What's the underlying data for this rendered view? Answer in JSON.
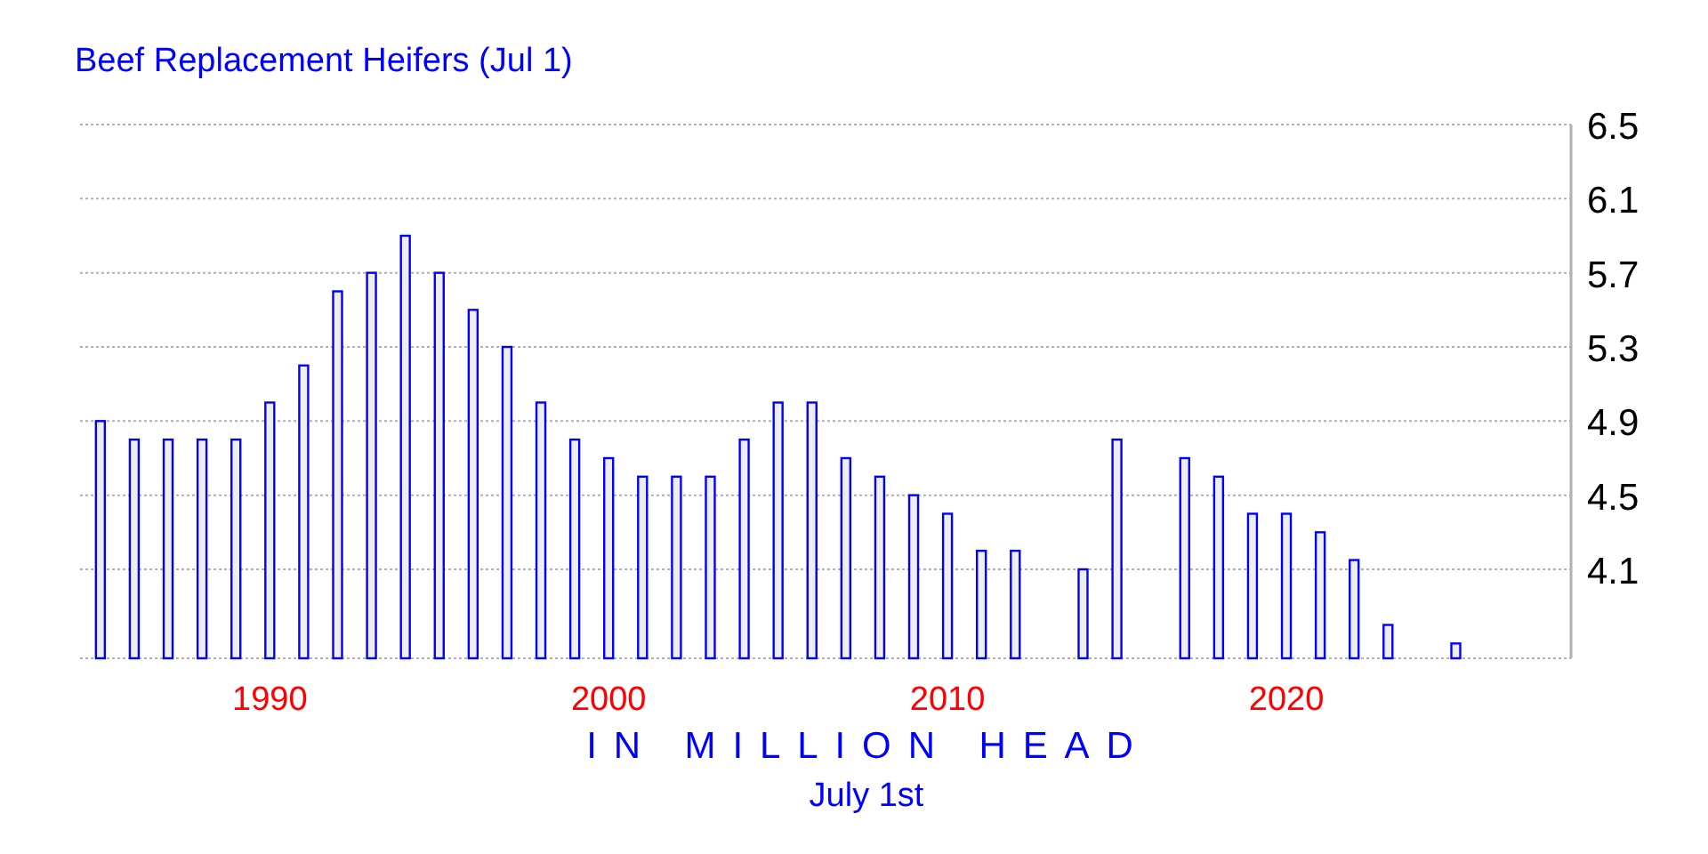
{
  "chart_data": {
    "type": "bar",
    "title": "Beef Replacement Heifers (Jul 1)",
    "xlabel": "IN MILLION HEAD",
    "annotations": [
      "July 1st"
    ],
    "x": [
      1985,
      1986,
      1987,
      1988,
      1989,
      1990,
      1991,
      1992,
      1993,
      1994,
      1995,
      1996,
      1997,
      1998,
      1999,
      2000,
      2001,
      2002,
      2003,
      2004,
      2005,
      2006,
      2007,
      2008,
      2009,
      2010,
      2011,
      2012,
      2014,
      2015,
      2017,
      2018,
      2019,
      2020,
      2021,
      2022,
      2023,
      2025
    ],
    "values": [
      4.9,
      4.8,
      4.8,
      4.8,
      4.8,
      5.0,
      5.2,
      5.6,
      5.7,
      5.9,
      5.7,
      5.5,
      5.3,
      5.0,
      4.8,
      4.7,
      4.6,
      4.6,
      4.6,
      4.8,
      5.0,
      5.0,
      4.7,
      4.6,
      4.5,
      4.4,
      4.2,
      4.2,
      4.1,
      4.8,
      4.7,
      4.6,
      4.4,
      4.4,
      4.3,
      4.15,
      3.8,
      3.7
    ],
    "color": "#0000ff",
    "xlim": [
      1984.4,
      2028.4
    ],
    "xticks": [
      1990,
      2000,
      2010,
      2020
    ],
    "ylim": [
      3.62,
      6.5
    ],
    "yticks": [
      4.1,
      4.5,
      4.9,
      5.3,
      5.7,
      6.1,
      6.5
    ],
    "grid": "y"
  }
}
